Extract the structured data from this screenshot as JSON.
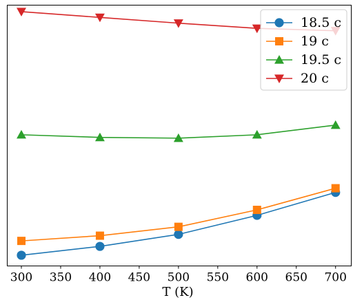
{
  "chart_data": {
    "type": "line",
    "title": "",
    "xlabel": "T (K)",
    "ylabel": "",
    "x": [
      300,
      400,
      500,
      600,
      700
    ],
    "xlim": [
      282,
      720
    ],
    "xticks": [
      300,
      350,
      400,
      450,
      500,
      550,
      600,
      650,
      700
    ],
    "ylim": [
      0,
      1
    ],
    "yticks_shown": false,
    "grid": false,
    "legend_position": "top-right",
    "series": [
      {
        "name": "18.5 c",
        "color": "#1f77b4",
        "marker": "circle",
        "values": [
          0.041,
          0.075,
          0.121,
          0.194,
          0.282
        ]
      },
      {
        "name": "19 c",
        "color": "#ff7f0e",
        "marker": "square",
        "values": [
          0.096,
          0.116,
          0.15,
          0.215,
          0.298
        ]
      },
      {
        "name": "19.5 c",
        "color": "#2ca02c",
        "marker": "triangle-up",
        "values": [
          0.503,
          0.493,
          0.49,
          0.503,
          0.54
        ]
      },
      {
        "name": "20 c",
        "color": "#d62728",
        "marker": "triangle-down",
        "values": [
          0.975,
          0.953,
          0.931,
          0.911,
          0.902
        ]
      }
    ]
  }
}
